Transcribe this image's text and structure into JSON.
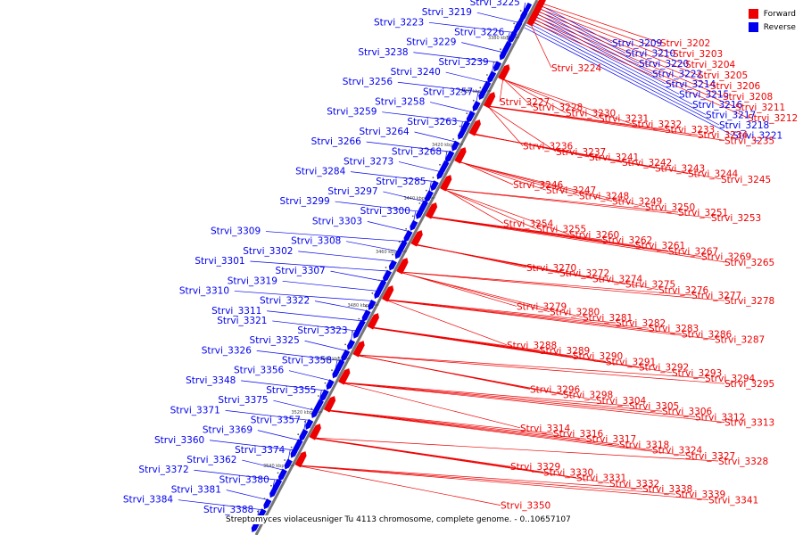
{
  "caption": "Streptomyces violaceusniger Tu 4113 chromosome, complete genome. - 0..10657107",
  "legend": [
    {
      "label": "Forward",
      "color": "#ee0000"
    },
    {
      "label": "Reverse",
      "color": "#0000ee"
    }
  ],
  "ticks": [
    "3380 kbp",
    "3400 kbp",
    "3420 kbp",
    "3440 kbp",
    "3460 kbp",
    "3480 kbp",
    "3500 kbp",
    "3520 kbp",
    "3540 kbp",
    "3560 kbp"
  ],
  "reverse_labels": [
    "Strvi_3225",
    "Strvi_3219",
    "Strvi_3223",
    "Strvi_3226",
    "Strvi_3229",
    "Strvi_3238",
    "Strvi_3239",
    "Strvi_3240",
    "Strvi_3256",
    "Strvi_3257",
    "Strvi_3258",
    "Strvi_3259",
    "Strvi_3263",
    "Strvi_3264",
    "Strvi_3266",
    "Strvi_3268",
    "Strvi_3273",
    "Strvi_3284",
    "Strvi_3285",
    "Strvi_3297",
    "Strvi_3299",
    "Strvi_3300",
    "Strvi_3303",
    "Strvi_3309",
    "Strvi_3308",
    "Strvi_3302",
    "Strvi_3301",
    "Strvi_3307",
    "Strvi_3319",
    "Strvi_3310",
    "Strvi_3322",
    "Strvi_3311",
    "Strvi_3321",
    "Strvi_3323",
    "Strvi_3325",
    "Strvi_3326",
    "Strvi_3358",
    "Strvi_3356",
    "Strvi_3348",
    "Strvi_3355",
    "Strvi_3375",
    "Strvi_3371",
    "Strvi_3357",
    "Strvi_3369",
    "Strvi_3360",
    "Strvi_3374",
    "Strvi_3362",
    "Strvi_3372",
    "Strvi_3380",
    "Strvi_3381",
    "Strvi_3384",
    "Strvi_3388",
    "Strvi_3209",
    "Strvi_3210",
    "Strvi_3220",
    "Strvi_3222",
    "Strvi_3214",
    "Strvi_3215",
    "Strvi_3216",
    "Strvi_3217",
    "Strvi_3218",
    "Strvi_3221"
  ],
  "forward_labels": [
    "Strvi_3202",
    "Strvi_3203",
    "Strvi_3204",
    "Strvi_3205",
    "Strvi_3206",
    "Strvi_3208",
    "Strvi_3211",
    "Strvi_3212",
    "Strvi_3224",
    "Strvi_3227",
    "Strvi_3228",
    "Strvi_3230",
    "Strvi_3231",
    "Strvi_3232",
    "Strvi_3233",
    "Strvi_3234",
    "Strvi_3235",
    "Strvi_3236",
    "Strvi_3237",
    "Strvi_3241",
    "Strvi_3242",
    "Strvi_3243",
    "Strvi_3244",
    "Strvi_3245",
    "Strvi_3246",
    "Strvi_3247",
    "Strvi_3248",
    "Strvi_3249",
    "Strvi_3250",
    "Strvi_3251",
    "Strvi_3253",
    "Strvi_3254",
    "Strvi_3255",
    "Strvi_3260",
    "Strvi_3262",
    "Strvi_3261",
    "Strvi_3267",
    "Strvi_3269",
    "Strvi_3265",
    "Strvi_3270",
    "Strvi_3272",
    "Strvi_3274",
    "Strvi_3275",
    "Strvi_3276",
    "Strvi_3277",
    "Strvi_3278",
    "Strvi_3279",
    "Strvi_3280",
    "Strvi_3281",
    "Strvi_3282",
    "Strvi_3283",
    "Strvi_3286",
    "Strvi_3287",
    "Strvi_3288",
    "Strvi_3289",
    "Strvi_3290",
    "Strvi_3291",
    "Strvi_3292",
    "Strvi_3293",
    "Strvi_3294",
    "Strvi_3295",
    "Strvi_3296",
    "Strvi_3298",
    "Strvi_3304",
    "Strvi_3305",
    "Strvi_3306",
    "Strvi_3312",
    "Strvi_3313",
    "Strvi_3314",
    "Strvi_3316",
    "Strvi_3317",
    "Strvi_3318",
    "Strvi_3324",
    "Strvi_3327",
    "Strvi_3328",
    "Strvi_3329",
    "Strvi_3330",
    "Strvi_3331",
    "Strvi_3332",
    "Strvi_3338",
    "Strvi_3339",
    "Strvi_3341",
    "Strvi_3350"
  ]
}
